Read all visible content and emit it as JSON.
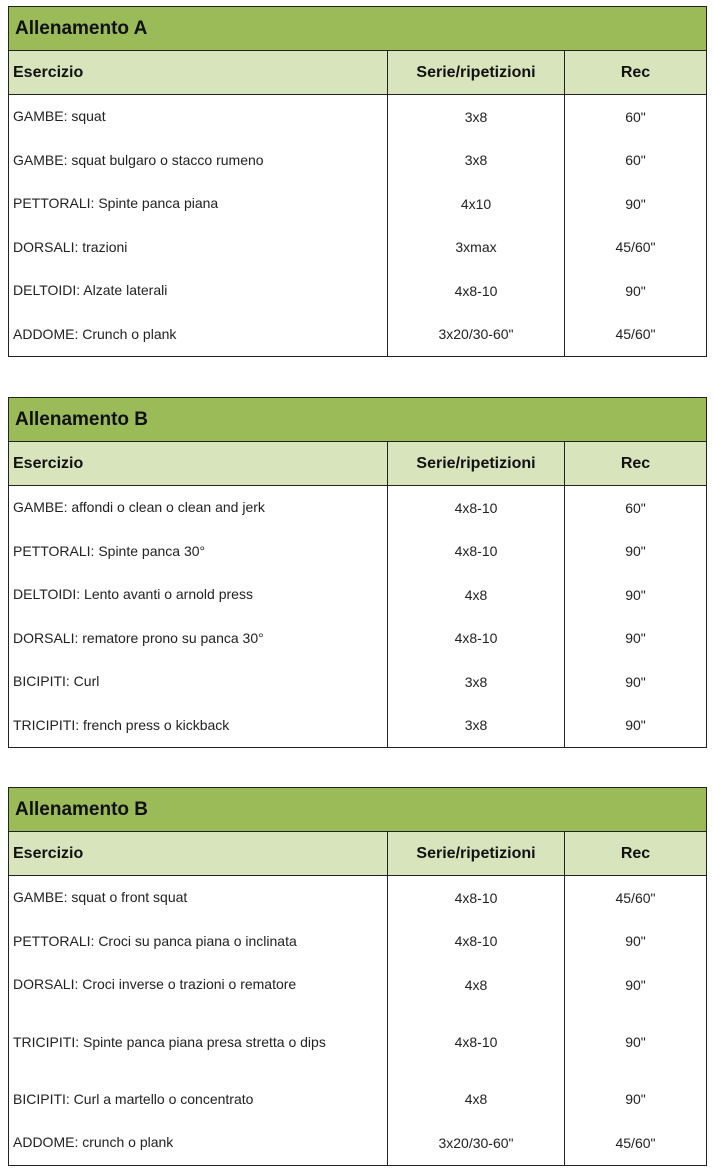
{
  "tables": [
    {
      "title": "Allenamento A",
      "headers": [
        "Esercizio",
        "Serie/ripetizioni",
        "Rec"
      ],
      "rows": [
        [
          "GAMBE: squat",
          "3x8",
          "60\""
        ],
        [
          "GAMBE: squat bulgaro o stacco rumeno",
          "3x8",
          "60\""
        ],
        [
          "PETTORALI: Spinte panca piana",
          "4x10",
          "90\""
        ],
        [
          "DORSALI: trazioni",
          "3xmax",
          "45/60\""
        ],
        [
          "DELTOIDI: Alzate laterali",
          "4x8-10",
          "90\""
        ],
        [
          "ADDOME: Crunch o plank",
          "3x20/30-60\"",
          "45/60\""
        ]
      ]
    },
    {
      "title": "Allenamento B",
      "headers": [
        "Esercizio",
        "Serie/ripetizioni",
        "Rec"
      ],
      "rows": [
        [
          "GAMBE: affondi o clean o clean and jerk",
          "4x8-10",
          "60\""
        ],
        [
          "PETTORALI: Spinte panca 30°",
          "4x8-10",
          "90\""
        ],
        [
          "DELTOIDI: Lento avanti o arnold press",
          "4x8",
          "90\""
        ],
        [
          "DORSALI: rematore prono su panca 30°",
          "4x8-10",
          "90\""
        ],
        [
          "BICIPITI: Curl",
          "3x8",
          "90\""
        ],
        [
          "TRICIPITI: french press o kickback",
          "3x8",
          "90\""
        ]
      ]
    },
    {
      "title": "Allenamento B",
      "headers": [
        "Esercizio",
        "Serie/ripetizioni",
        "Rec"
      ],
      "rows": [
        [
          "GAMBE: squat o front squat",
          "4x8-10",
          "45/60\""
        ],
        [
          "PETTORALI: Croci su panca piana o inclinata",
          "4x8-10",
          "90\""
        ],
        [
          "DORSALI: Croci inverse o trazioni o rematore",
          "4x8",
          "90\""
        ],
        [
          "TRICIPITI: Spinte panca piana presa stretta o dips",
          "4x8-10",
          "90\""
        ],
        [
          "BICIPITI: Curl a martello o concentrato",
          "4x8",
          "90\""
        ],
        [
          "ADDOME: crunch o plank",
          "3x20/30-60\"",
          "45/60\""
        ]
      ]
    }
  ],
  "colors": {
    "title_bg": "#9bbb59",
    "header_bg": "#d7e4bc"
  }
}
